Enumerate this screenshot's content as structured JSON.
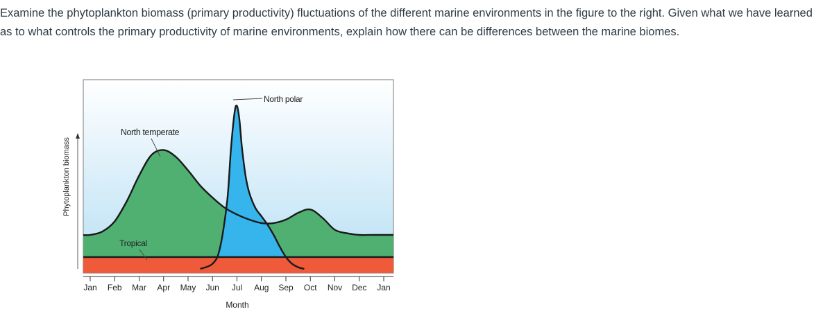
{
  "question": {
    "text": "Examine the phytoplankton biomass (primary productivity) fluctuations of the different marine environments in the figure to the right. Given what we have learned as to what controls the primary productivity of marine environments, explain how there can be differences between the marine biomes."
  },
  "chart_data": {
    "type": "area",
    "xlabel": "Month",
    "ylabel": "Phytoplankton biomass",
    "categories": [
      "Jan",
      "Feb",
      "Mar",
      "Apr",
      "May",
      "Jun",
      "Jul",
      "Aug",
      "Sep",
      "Oct",
      "Nov",
      "Dec",
      "Jan"
    ],
    "ylim": [
      0,
      100
    ],
    "series": [
      {
        "name": "Tropical",
        "color": "#ee5a3a",
        "x": [
          0,
          1,
          2,
          3,
          4,
          5,
          6,
          7,
          8,
          9,
          10,
          11,
          12
        ],
        "values": [
          7,
          7,
          7,
          7,
          7,
          7,
          7,
          7,
          7,
          7,
          7,
          7,
          7
        ]
      },
      {
        "name": "North temperate",
        "color": "#4fb072",
        "x": [
          0,
          0.5,
          1,
          1.5,
          2,
          2.5,
          3,
          3.5,
          4,
          4.5,
          5,
          5.5,
          6,
          6.5,
          7,
          7.5,
          8,
          8.5,
          9,
          9.5,
          10,
          10.5,
          11,
          11.5,
          12
        ],
        "values": [
          20,
          22,
          28,
          40,
          55,
          67,
          70,
          66,
          58,
          49,
          42,
          36,
          32,
          29,
          27,
          27,
          29,
          33,
          35,
          30,
          23,
          21,
          20,
          20,
          20
        ]
      },
      {
        "name": "North polar",
        "color": "#35b5ec",
        "x": [
          4.5,
          5,
          5.3,
          5.6,
          5.75,
          5.9,
          6,
          6.1,
          6.2,
          6.35,
          6.5,
          6.75,
          7,
          7.25,
          7.5,
          7.75,
          8,
          8.25,
          8.5,
          8.75
        ],
        "values": [
          0,
          3,
          12,
          40,
          70,
          92,
          96,
          88,
          72,
          55,
          45,
          36,
          31,
          26,
          20,
          13,
          7,
          3,
          1,
          0
        ]
      }
    ],
    "annotations": [
      "North temperate",
      "Tropical",
      "North polar"
    ],
    "legend": "none"
  }
}
